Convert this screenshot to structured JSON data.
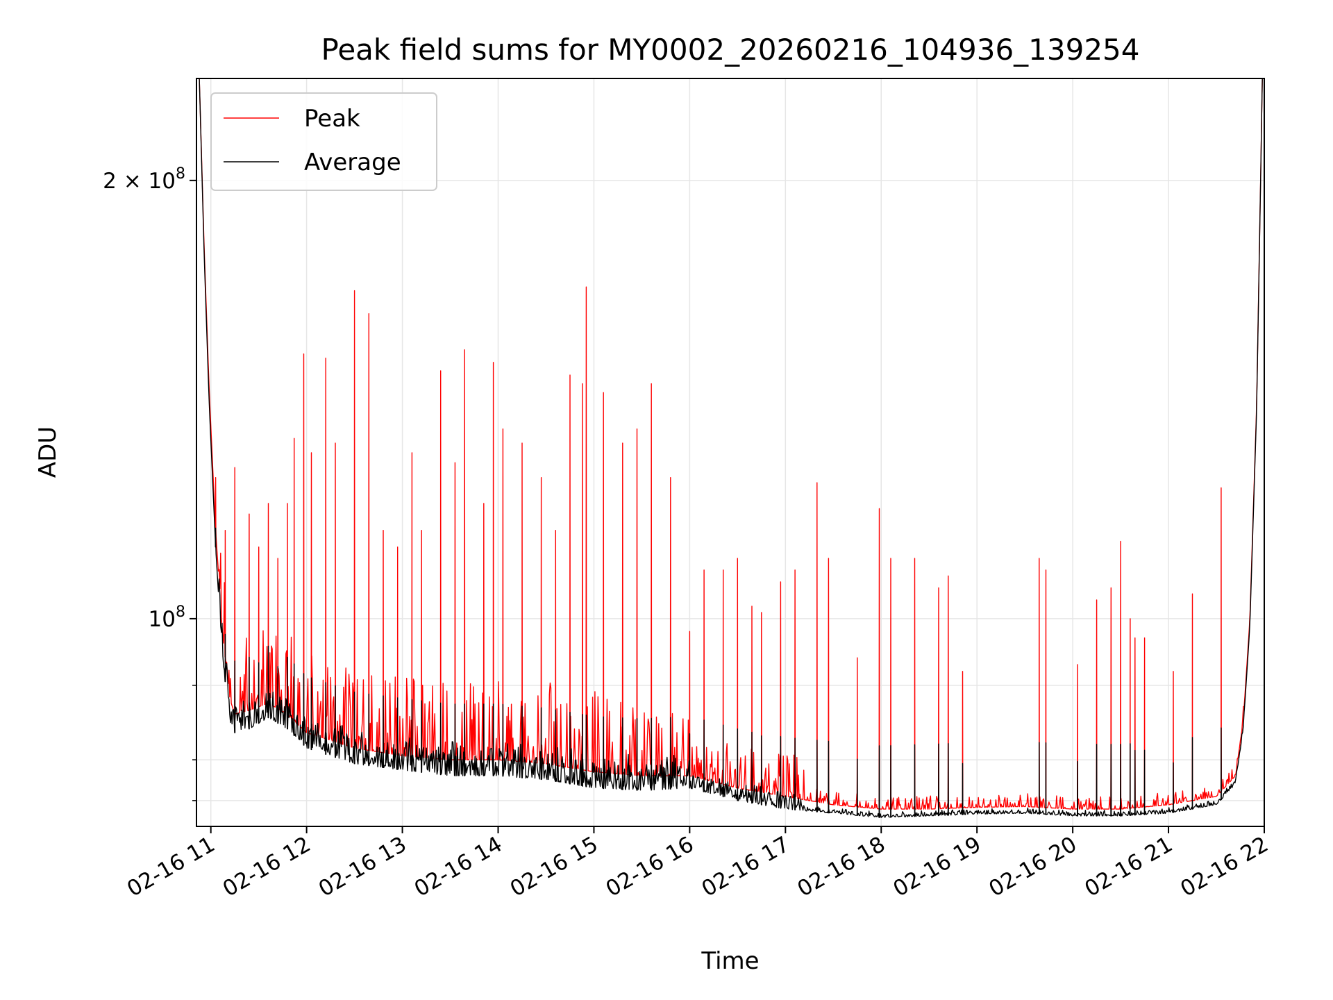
{
  "chart_data": {
    "type": "line",
    "title": "Peak field sums for MY0002_20260216_104936_139254",
    "xlabel": "Time",
    "ylabel": "ADU",
    "yscale": "log",
    "grid": true,
    "legend_position": "top-left",
    "xlim": [
      10.85,
      22.0
    ],
    "ylim": [
      72000000,
      235000000
    ],
    "x_unit": "hours of 2026-02-16",
    "x_ticks": [
      {
        "value": 11,
        "label": "02-16 11"
      },
      {
        "value": 12,
        "label": "02-16 12"
      },
      {
        "value": 13,
        "label": "02-16 13"
      },
      {
        "value": 14,
        "label": "02-16 14"
      },
      {
        "value": 15,
        "label": "02-16 15"
      },
      {
        "value": 16,
        "label": "02-16 16"
      },
      {
        "value": 17,
        "label": "02-16 17"
      },
      {
        "value": 18,
        "label": "02-16 18"
      },
      {
        "value": 19,
        "label": "02-16 19"
      },
      {
        "value": 20,
        "label": "02-16 20"
      },
      {
        "value": 21,
        "label": "02-16 21"
      },
      {
        "value": 22,
        "label": "02-16 22"
      }
    ],
    "y_ticks_major": [
      {
        "value": 100000000,
        "base": "10",
        "exp": "8",
        "mantissa": ""
      },
      {
        "value": 200000000,
        "base": "10",
        "exp": "8",
        "mantissa": "2 × "
      }
    ],
    "y_ticks_minor": [
      75000000,
      80000000,
      90000000
    ],
    "series": [
      {
        "name": "Peak",
        "color": "#ff0000",
        "baseline": [
          [
            10.88,
            235000000
          ],
          [
            10.93,
            180000000
          ],
          [
            10.98,
            145000000
          ],
          [
            11.05,
            115000000
          ],
          [
            11.12,
            98000000
          ],
          [
            11.2,
            88000000
          ],
          [
            11.25,
            86000000
          ],
          [
            11.4,
            86500000
          ],
          [
            11.6,
            87500000
          ],
          [
            11.8,
            86000000
          ],
          [
            12.0,
            83500000
          ],
          [
            12.5,
            81500000
          ],
          [
            13.0,
            80500000
          ],
          [
            13.5,
            80000000
          ],
          [
            14.0,
            80000000
          ],
          [
            14.5,
            79500000
          ],
          [
            15.0,
            78500000
          ],
          [
            15.5,
            78000000
          ],
          [
            16.0,
            78000000
          ],
          [
            16.5,
            76500000
          ],
          [
            17.0,
            75500000
          ],
          [
            17.5,
            74500000
          ],
          [
            18.0,
            74000000
          ],
          [
            18.5,
            74000000
          ],
          [
            19.0,
            74200000
          ],
          [
            19.5,
            74300000
          ],
          [
            20.0,
            74000000
          ],
          [
            20.5,
            74000000
          ],
          [
            21.0,
            74500000
          ],
          [
            21.5,
            75500000
          ],
          [
            21.7,
            78000000
          ],
          [
            21.78,
            85000000
          ],
          [
            21.85,
            100000000
          ],
          [
            21.92,
            140000000
          ],
          [
            21.98,
            235000000
          ]
        ],
        "spikes": [
          [
            11.05,
            125000000
          ],
          [
            11.15,
            115000000
          ],
          [
            11.25,
            127000000
          ],
          [
            11.4,
            118000000
          ],
          [
            11.5,
            112000000
          ],
          [
            11.6,
            120000000
          ],
          [
            11.7,
            110000000
          ],
          [
            11.8,
            120000000
          ],
          [
            11.87,
            133000000
          ],
          [
            11.97,
            152000000
          ],
          [
            12.05,
            130000000
          ],
          [
            12.2,
            151000000
          ],
          [
            12.3,
            132000000
          ],
          [
            12.5,
            168000000
          ],
          [
            12.65,
            162000000
          ],
          [
            12.8,
            115000000
          ],
          [
            12.95,
            112000000
          ],
          [
            13.1,
            130000000
          ],
          [
            13.2,
            115000000
          ],
          [
            13.4,
            148000000
          ],
          [
            13.55,
            128000000
          ],
          [
            13.65,
            153000000
          ],
          [
            13.85,
            120000000
          ],
          [
            13.95,
            150000000
          ],
          [
            14.05,
            135000000
          ],
          [
            14.25,
            132000000
          ],
          [
            14.45,
            125000000
          ],
          [
            14.6,
            115000000
          ],
          [
            14.75,
            147000000
          ],
          [
            14.88,
            145000000
          ],
          [
            14.92,
            169000000
          ],
          [
            15.1,
            143000000
          ],
          [
            15.3,
            132000000
          ],
          [
            15.45,
            135000000
          ],
          [
            15.6,
            145000000
          ],
          [
            15.8,
            125000000
          ],
          [
            16.0,
            98000000
          ],
          [
            16.15,
            108000000
          ],
          [
            16.35,
            108000000
          ],
          [
            16.5,
            110000000
          ],
          [
            16.65,
            102000000
          ],
          [
            16.75,
            101000000
          ],
          [
            16.95,
            106000000
          ],
          [
            17.1,
            108000000
          ],
          [
            17.33,
            124000000
          ],
          [
            17.45,
            110000000
          ],
          [
            17.75,
            94000000
          ],
          [
            17.98,
            119000000
          ],
          [
            18.1,
            110000000
          ],
          [
            18.35,
            110000000
          ],
          [
            18.6,
            105000000
          ],
          [
            18.7,
            107000000
          ],
          [
            18.85,
            92000000
          ],
          [
            19.65,
            110000000
          ],
          [
            19.72,
            108000000
          ],
          [
            20.05,
            93000000
          ],
          [
            20.25,
            103000000
          ],
          [
            20.4,
            105000000
          ],
          [
            20.5,
            113000000
          ],
          [
            20.6,
            100000000
          ],
          [
            20.65,
            97000000
          ],
          [
            20.75,
            97000000
          ],
          [
            21.05,
            92000000
          ],
          [
            21.25,
            104000000
          ],
          [
            21.55,
            123000000
          ]
        ]
      },
      {
        "name": "Average",
        "color": "#000000",
        "baseline": [
          [
            10.88,
            235000000
          ],
          [
            10.93,
            178000000
          ],
          [
            10.98,
            142000000
          ],
          [
            11.05,
            112000000
          ],
          [
            11.12,
            94000000
          ],
          [
            11.2,
            85000000
          ],
          [
            11.25,
            83500000
          ],
          [
            11.4,
            84000000
          ],
          [
            11.6,
            85500000
          ],
          [
            11.8,
            84000000
          ],
          [
            12.0,
            81500000
          ],
          [
            12.5,
            79500000
          ],
          [
            13.0,
            78700000
          ],
          [
            13.5,
            78000000
          ],
          [
            14.0,
            78000000
          ],
          [
            14.5,
            77500000
          ],
          [
            15.0,
            76500000
          ],
          [
            15.5,
            76200000
          ],
          [
            16.0,
            76500000
          ],
          [
            16.5,
            75000000
          ],
          [
            17.0,
            74000000
          ],
          [
            17.5,
            73500000
          ],
          [
            18.0,
            73000000
          ],
          [
            18.5,
            73200000
          ],
          [
            19.0,
            73400000
          ],
          [
            19.5,
            73500000
          ],
          [
            20.0,
            73200000
          ],
          [
            20.5,
            73200000
          ],
          [
            21.0,
            73500000
          ],
          [
            21.5,
            74500000
          ],
          [
            21.7,
            77000000
          ],
          [
            21.78,
            84000000
          ],
          [
            21.85,
            99000000
          ],
          [
            21.92,
            139000000
          ],
          [
            21.98,
            235000000
          ]
        ]
      }
    ]
  }
}
